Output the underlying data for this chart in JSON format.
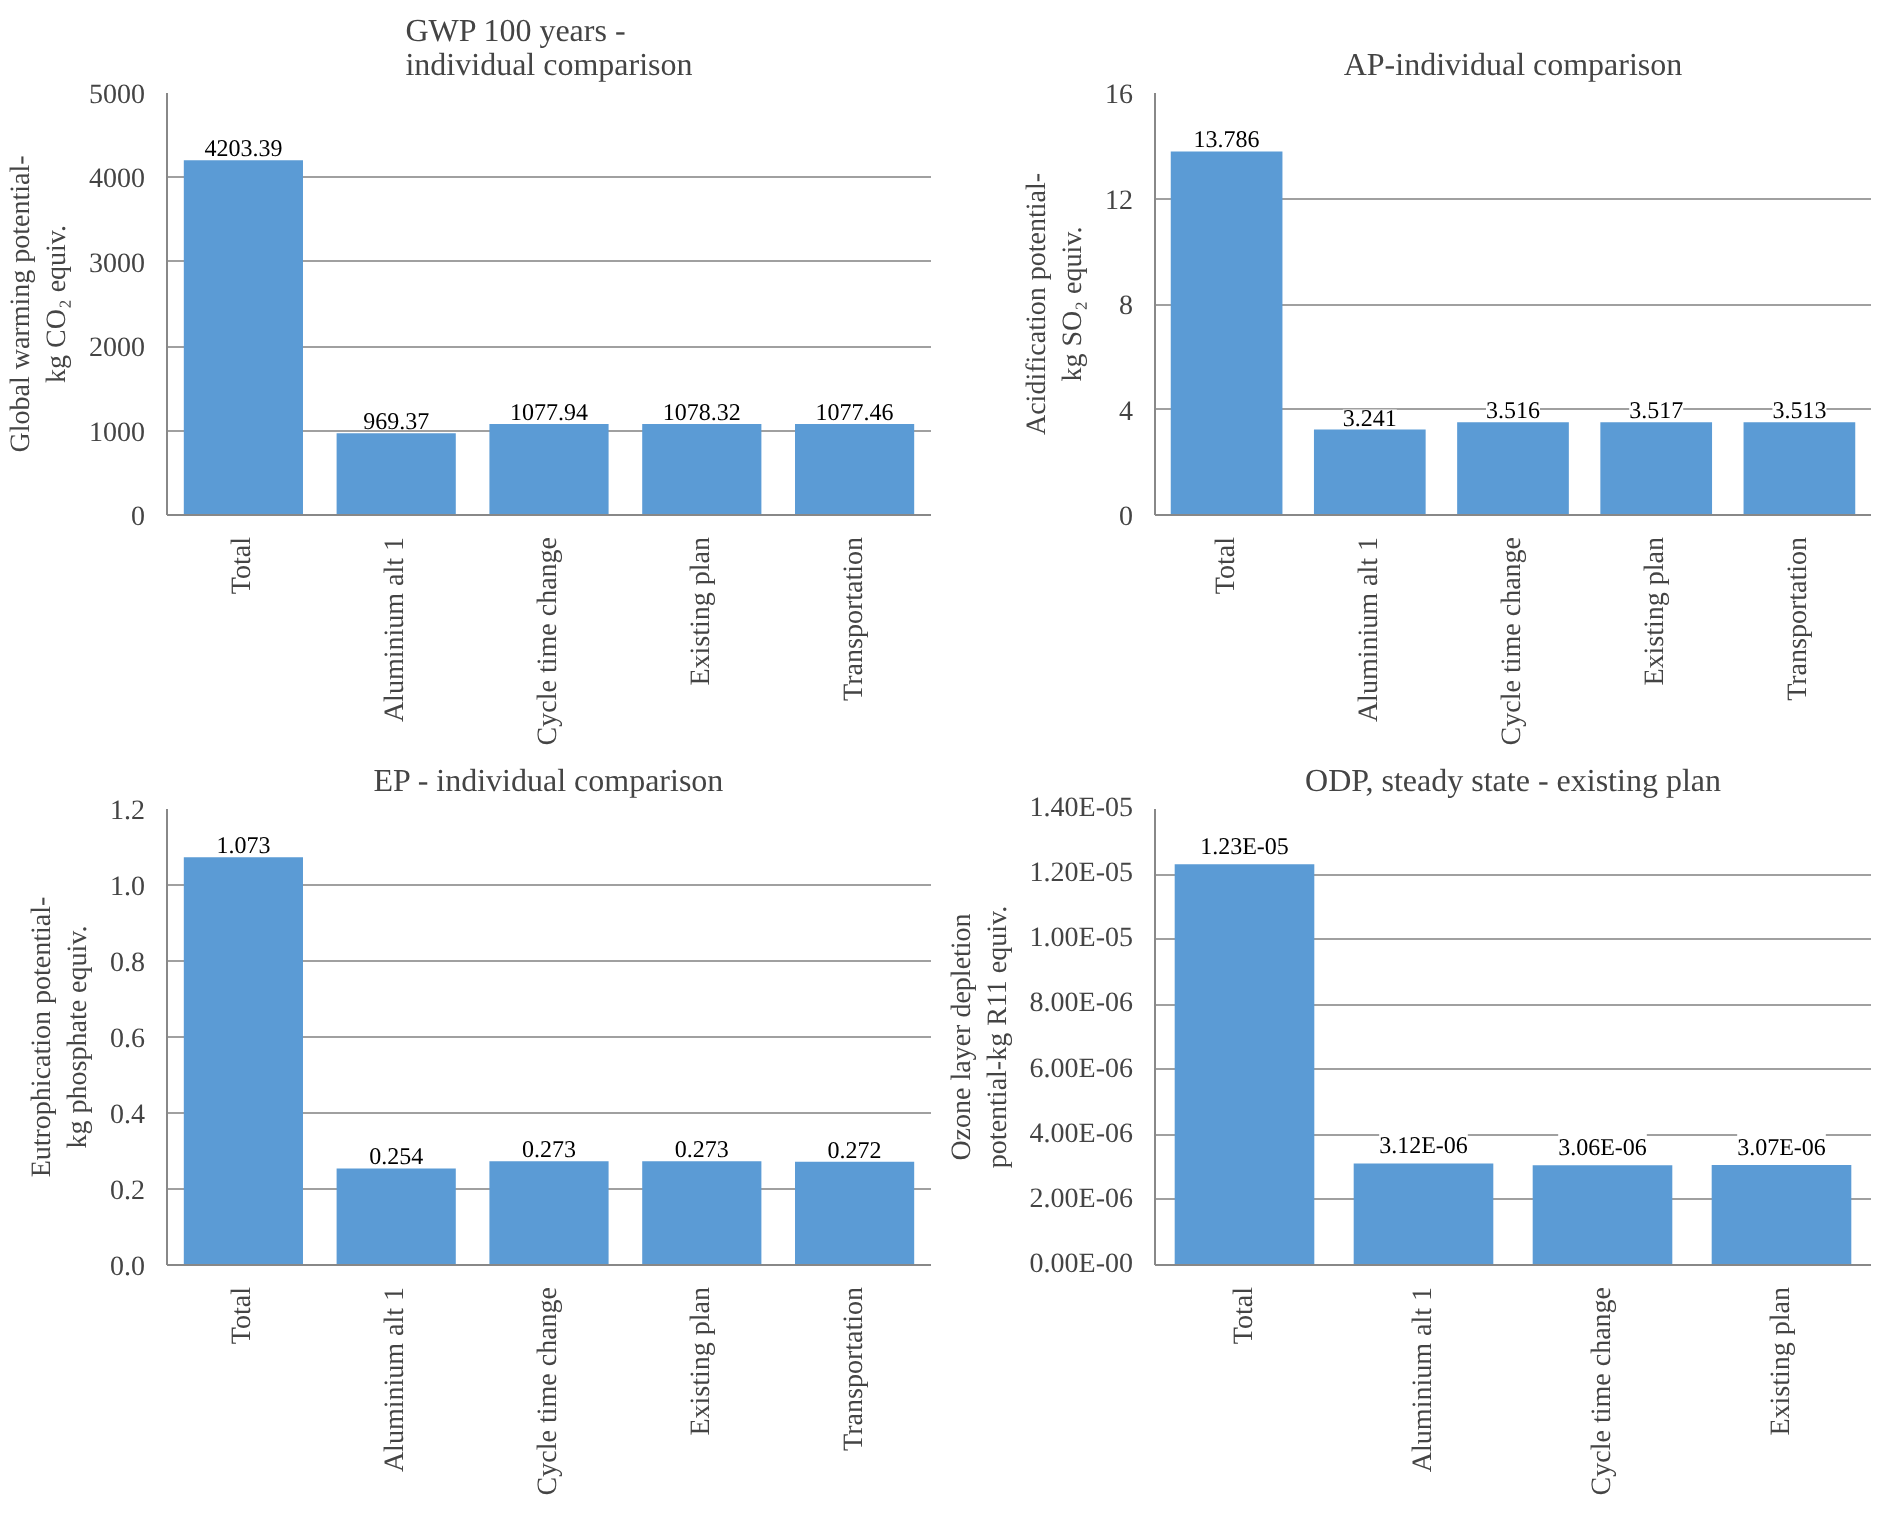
{
  "chart_data": [
    {
      "type": "bar",
      "title": "GWP 100 years -\nindividual comparison",
      "ylabel": "Global warming potential-\nkg CO₂ equiv.",
      "categories": [
        "Total",
        "Aluminium alt 1",
        "Cycle time change",
        "Existing plan",
        "Transportation"
      ],
      "values": [
        4203.39,
        969.37,
        1077.94,
        1078.32,
        1077.46
      ],
      "color": "#5b9bd5",
      "ylim": [
        0,
        5000
      ],
      "yticks": [
        0,
        1000,
        2000,
        3000,
        4000,
        5000
      ],
      "grid": "y",
      "data_labels": true
    },
    {
      "type": "bar",
      "title": "AP-individual comparison",
      "ylabel": "Acidification potential-\nkg SO₂ equiv.",
      "categories": [
        "Total",
        "Aluminium alt 1",
        "Cycle time change",
        "Existing plan",
        "Transportation"
      ],
      "values": [
        13.786,
        3.241,
        3.516,
        3.517,
        3.513
      ],
      "color": "#5b9bd5",
      "ylim": [
        0,
        16
      ],
      "yticks": [
        0,
        4,
        8,
        12,
        16
      ],
      "grid": "y",
      "data_labels": true
    },
    {
      "type": "bar",
      "title": "EP - individual comparison",
      "ylabel": "Eutrophication potential-\nkg phosphate equiv.",
      "categories": [
        "Total",
        "Aluminium alt 1",
        "Cycle time change",
        "Existing plan",
        "Transportation"
      ],
      "values": [
        1.073,
        0.254,
        0.273,
        0.273,
        0.272
      ],
      "color": "#5b9bd5",
      "ylim": [
        0,
        1.2
      ],
      "yticks": [
        {
          "value": 0,
          "label": "0.0"
        },
        0.2,
        0.4,
        0.6,
        0.8,
        {
          "value": 1,
          "label": "1.0"
        },
        1.2
      ],
      "grid": "y",
      "data_labels": true
    },
    {
      "type": "bar",
      "title": "ODP, steady state - existing plan",
      "ylabel": "Ozone layer depletion\npotential-kg R11 equiv.",
      "categories": [
        "Total",
        "Aluminium alt 1",
        "Cycle time change",
        "Existing plan"
      ],
      "values": [
        1.23e-05,
        3.12e-06,
        3.06e-06,
        3.07e-06
      ],
      "value_labels": [
        "1.23E-05",
        "3.12E-06",
        "3.06E-06",
        "3.07E-06"
      ],
      "color": "#5b9bd5",
      "ylim": [
        0,
        1.4e-05
      ],
      "yticks": [
        {
          "value": 0,
          "label": "0.00E-00"
        },
        {
          "value": 2e-06,
          "label": "2.00E-06"
        },
        {
          "value": 4e-06,
          "label": "4.00E-06"
        },
        {
          "value": 6e-06,
          "label": "6.00E-06"
        },
        {
          "value": 8e-06,
          "label": "8.00E-06"
        },
        {
          "value": 1e-05,
          "label": "1.00E-05"
        },
        {
          "value": 1.2e-05,
          "label": "1.20E-05"
        },
        {
          "value": 1.4e-05,
          "label": "1.40E-05"
        }
      ],
      "grid": "y"
    }
  ]
}
